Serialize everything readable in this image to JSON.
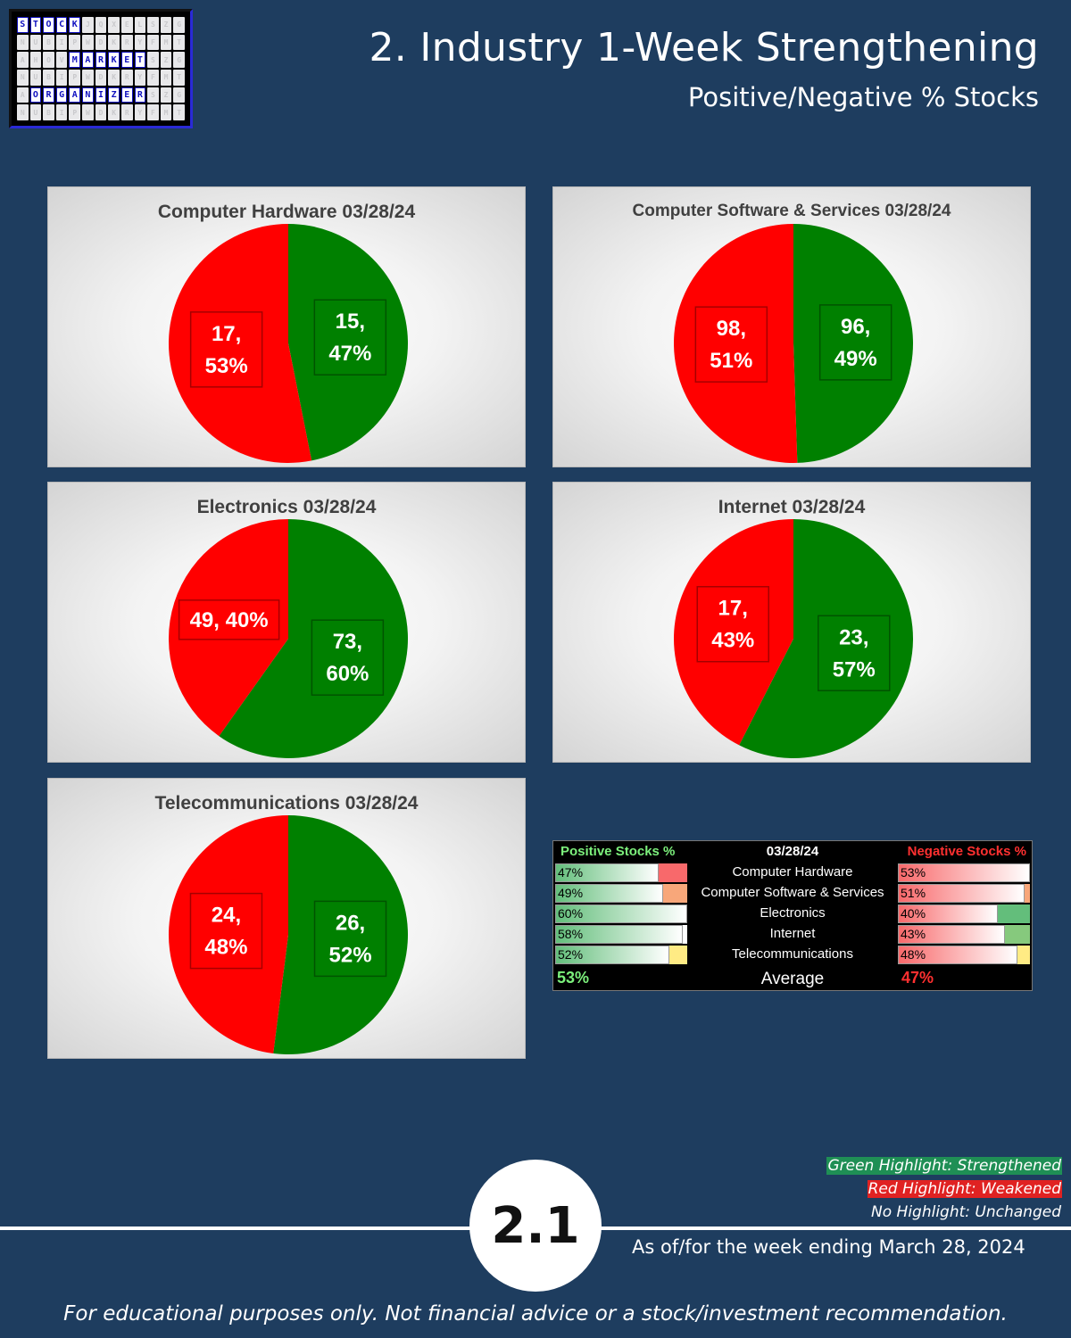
{
  "logo": {
    "word1": [
      "S",
      "T",
      "O",
      "C",
      "K"
    ],
    "word2": [
      "M",
      "A",
      "R",
      "K",
      "E",
      "T"
    ],
    "word3": [
      "O",
      "R",
      "G",
      "A",
      "N",
      "I",
      "Z",
      "E",
      "R"
    ]
  },
  "header": {
    "title": "2. Industry 1-Week Strengthening",
    "subtitle": "Positive/Negative % Stocks"
  },
  "colors": {
    "positive": "#008000",
    "negative": "#ff0000",
    "background": "#1e3d5f"
  },
  "chart_data": [
    {
      "type": "pie",
      "title": "Computer Hardware 03/28/24",
      "slices": [
        {
          "name": "Positive",
          "value": 15,
          "percent": 47,
          "label": "15, 47%",
          "color": "#008000"
        },
        {
          "name": "Negative",
          "value": 17,
          "percent": 53,
          "label": "17, 53%",
          "color": "#ff0000"
        }
      ]
    },
    {
      "type": "pie",
      "title": "Computer Software & Services 03/28/24",
      "slices": [
        {
          "name": "Positive",
          "value": 96,
          "percent": 49,
          "label": "96, 49%",
          "color": "#008000"
        },
        {
          "name": "Negative",
          "value": 98,
          "percent": 51,
          "label": "98, 51%",
          "color": "#ff0000"
        }
      ]
    },
    {
      "type": "pie",
      "title": "Electronics 03/28/24",
      "slices": [
        {
          "name": "Positive",
          "value": 73,
          "percent": 60,
          "label": "73, 60%",
          "color": "#008000"
        },
        {
          "name": "Negative",
          "value": 49,
          "percent": 40,
          "label": "49, 40%",
          "color": "#ff0000"
        }
      ]
    },
    {
      "type": "pie",
      "title": "Internet 03/28/24",
      "slices": [
        {
          "name": "Positive",
          "value": 23,
          "percent": 57,
          "label": "23, 57%",
          "color": "#008000"
        },
        {
          "name": "Negative",
          "value": 17,
          "percent": 43,
          "label": "17, 43%",
          "color": "#ff0000"
        }
      ]
    },
    {
      "type": "pie",
      "title": "Telecommunications 03/28/24",
      "slices": [
        {
          "name": "Positive",
          "value": 26,
          "percent": 52,
          "label": "26, 52%",
          "color": "#008000"
        },
        {
          "name": "Negative",
          "value": 24,
          "percent": 48,
          "label": "24, 48%",
          "color": "#ff0000"
        }
      ]
    }
  ],
  "summary": {
    "positive_header": "Positive Stocks %",
    "date_header": "03/28/24",
    "negative_header": "Negative Stocks %",
    "rows": [
      {
        "positive": "47%",
        "positive_value": 0.47,
        "name": "Computer Hardware",
        "negative": "53%",
        "negative_value": 0.53,
        "pos_highlight": "#f8696b",
        "neg_highlight": ""
      },
      {
        "positive": "49%",
        "positive_value": 0.49,
        "name": "Computer Software & Services",
        "negative": "51%",
        "negative_value": 0.51,
        "pos_highlight": "#f8a77a",
        "neg_highlight": "#f8a77a"
      },
      {
        "positive": "60%",
        "positive_value": 0.6,
        "name": "Electronics",
        "negative": "40%",
        "negative_value": 0.4,
        "pos_highlight": "",
        "neg_highlight": "#63be7b"
      },
      {
        "positive": "58%",
        "positive_value": 0.58,
        "name": "Internet",
        "negative": "43%",
        "negative_value": 0.43,
        "pos_highlight": "",
        "neg_highlight": "#86c97d"
      },
      {
        "positive": "52%",
        "positive_value": 0.52,
        "name": "Telecommunications",
        "negative": "48%",
        "negative_value": 0.48,
        "pos_highlight": "#ffeb84",
        "neg_highlight": "#ffeb84"
      }
    ],
    "average_positive": "53%",
    "average_label": "Average",
    "average_negative": "47%"
  },
  "legend": {
    "green": "Green Highlight: Strengthened",
    "red": "Red Highlight: Weakened",
    "none": "No Highlight: Unchanged"
  },
  "footer": {
    "page_number": "2.1",
    "as_of": "As of/for the week ending March 28, 2024",
    "disclaimer": "For educational purposes only. Not financial advice or a stock/investment recommendation."
  }
}
